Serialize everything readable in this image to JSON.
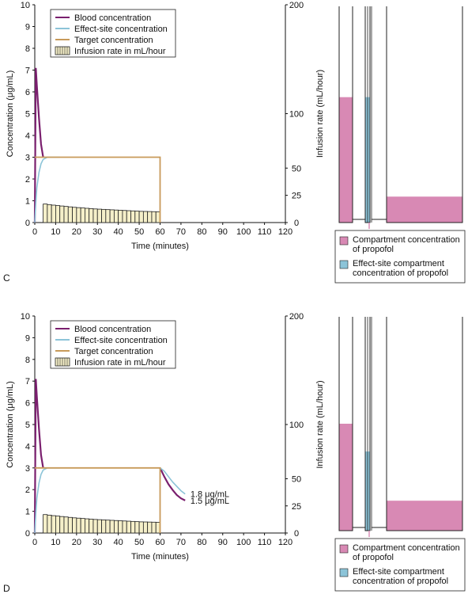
{
  "colors": {
    "blood": "#7a1f6e",
    "effect": "#8cc4d8",
    "target": "#c89a5a",
    "infusion_fill": "#f5efc9",
    "compartment_fill": "#d889b4",
    "effect_box_fill": "#8cc4d8",
    "axis": "#111111"
  },
  "chart_data": [
    {
      "panel": "C",
      "type": "line",
      "xlabel": "Time (minutes)",
      "ylabel_left": "Concentration (μg/mL)",
      "ylabel_right": "Infusion rate (mL/hour)",
      "xlim": [
        0,
        120
      ],
      "ylim_left": [
        0,
        10
      ],
      "ylim_right": [
        0,
        200
      ],
      "x_ticks": [
        "0",
        "10",
        "20",
        "30",
        "40",
        "50",
        "60",
        "70",
        "80",
        "90",
        "100",
        "110",
        "120"
      ],
      "y_ticks_left": [
        "0",
        "1",
        "2",
        "3",
        "4",
        "5",
        "6",
        "7",
        "8",
        "9",
        "10"
      ],
      "y_ticks_right": [
        "0",
        "25",
        "50",
        "100",
        "200"
      ],
      "legend": [
        "Blood concentration",
        "Effect-site concentration",
        "Target concentration",
        "Infusion rate in mL/hour"
      ],
      "series": [
        {
          "name": "Blood concentration",
          "color_key": "blood",
          "x": [
            0,
            0.5,
            1,
            2,
            3,
            4
          ],
          "y": [
            0,
            7.1,
            6.3,
            4.8,
            3.6,
            3.0
          ]
        },
        {
          "name": "Effect-site concentration",
          "color_key": "effect",
          "x": [
            0,
            0.5,
            1,
            2,
            3,
            4,
            6,
            8,
            12
          ],
          "y": [
            0,
            0.9,
            1.6,
            2.3,
            2.7,
            2.9,
            3.0,
            3.0,
            3.0
          ]
        },
        {
          "name": "Target concentration",
          "color_key": "target",
          "x": [
            0,
            60,
            60
          ],
          "y": [
            3,
            3,
            0
          ]
        },
        {
          "name": "Infusion rate in mL/hour",
          "type": "bar",
          "color_key": "infusion_fill",
          "x_start": 4,
          "x_end": 60,
          "x": [
            5,
            7,
            9,
            11,
            13,
            15,
            17,
            19,
            21,
            23,
            25,
            27,
            29,
            31,
            33,
            35,
            37,
            39,
            41,
            43,
            45,
            47,
            49,
            51,
            53,
            55,
            57,
            59
          ],
          "y": [
            17,
            16.5,
            16,
            15.6,
            15.2,
            14.8,
            14.4,
            14,
            13.7,
            13.4,
            13.1,
            12.8,
            12.5,
            12.3,
            12.1,
            11.9,
            11.7,
            11.5,
            11.3,
            11.1,
            10.9,
            10.7,
            10.5,
            10.3,
            10.2,
            10.1,
            10,
            9.9
          ]
        }
      ],
      "annotations": []
    },
    {
      "panel": "D",
      "type": "line",
      "xlabel": "Time (minutes)",
      "ylabel_left": "Concentration (μg/mL)",
      "ylabel_right": "Infusion rate (mL/hour)",
      "xlim": [
        0,
        120
      ],
      "ylim_left": [
        0,
        10
      ],
      "ylim_right": [
        0,
        200
      ],
      "x_ticks": [
        "0",
        "10",
        "20",
        "30",
        "40",
        "50",
        "60",
        "70",
        "80",
        "90",
        "100",
        "110",
        "120"
      ],
      "y_ticks_left": [
        "0",
        "1",
        "2",
        "3",
        "4",
        "5",
        "6",
        "7",
        "8",
        "9",
        "10"
      ],
      "y_ticks_right": [
        "0",
        "25",
        "50",
        "100",
        "200"
      ],
      "legend": [
        "Blood concentration",
        "Effect-site concentration",
        "Target concentration",
        "Infusion rate in mL/hour"
      ],
      "series": [
        {
          "name": "Blood concentration",
          "color_key": "blood",
          "x": [
            0,
            0.5,
            1,
            2,
            3,
            4,
            60,
            62,
            64,
            66,
            68,
            70,
            72
          ],
          "y": [
            0,
            7.1,
            6.3,
            4.8,
            3.6,
            3.0,
            3.0,
            2.6,
            2.25,
            1.98,
            1.75,
            1.6,
            1.5
          ],
          "break_after": 5
        },
        {
          "name": "Effect-site concentration",
          "color_key": "effect",
          "x": [
            0,
            0.5,
            1,
            2,
            3,
            4,
            6,
            8,
            12,
            60,
            62,
            64,
            66,
            68,
            70,
            72
          ],
          "y": [
            0,
            0.9,
            1.6,
            2.3,
            2.7,
            2.9,
            3.0,
            3.0,
            3.0,
            3.0,
            2.85,
            2.6,
            2.35,
            2.15,
            1.95,
            1.8
          ],
          "break_after": 8
        },
        {
          "name": "Target concentration",
          "color_key": "target",
          "x": [
            0,
            60,
            60
          ],
          "y": [
            3,
            3,
            0
          ]
        },
        {
          "name": "Infusion rate in mL/hour",
          "type": "bar",
          "color_key": "infusion_fill",
          "x_start": 4,
          "x_end": 60,
          "x": [
            5,
            7,
            9,
            11,
            13,
            15,
            17,
            19,
            21,
            23,
            25,
            27,
            29,
            31,
            33,
            35,
            37,
            39,
            41,
            43,
            45,
            47,
            49,
            51,
            53,
            55,
            57,
            59
          ],
          "y": [
            17,
            16.5,
            16,
            15.6,
            15.2,
            14.8,
            14.4,
            14,
            13.7,
            13.4,
            13.1,
            12.8,
            12.5,
            12.3,
            12.1,
            11.9,
            11.7,
            11.5,
            11.3,
            11.1,
            10.9,
            10.7,
            10.5,
            10.3,
            10.2,
            10.1,
            10,
            9.9
          ]
        }
      ],
      "annotations": [
        {
          "text": "1.8 μg/mL",
          "x": 73,
          "y": 1.8
        },
        {
          "text": "1.5 μg/mL",
          "x": 73,
          "y": 1.5
        }
      ]
    }
  ],
  "compartment_legend": [
    "Compartment concentration of propofol",
    "Effect-site compartment concentration of propofol"
  ],
  "compartment_legend_lines": [
    [
      "Compartment concentration",
      "of propofol"
    ],
    [
      "Effect-site compartment",
      "concentration of propofol"
    ]
  ],
  "panel_labels": [
    "C",
    "D"
  ],
  "compartments": [
    {
      "panel": "C",
      "central_level": 0.58,
      "effect_level": 0.58,
      "peripheral_level": 0.12
    },
    {
      "panel": "D",
      "central_level": 0.5,
      "effect_level": 0.37,
      "peripheral_level": 0.14
    }
  ]
}
